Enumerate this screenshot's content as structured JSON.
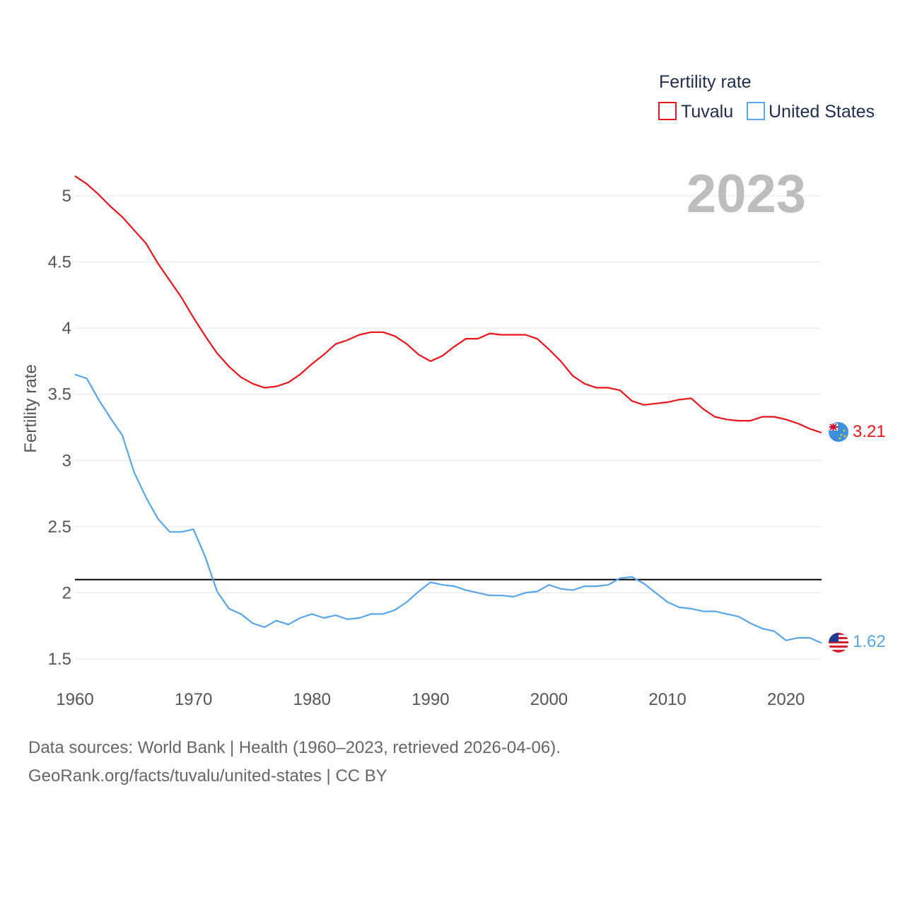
{
  "chart_data": {
    "type": "line",
    "title": "",
    "ylabel": "Fertility rate",
    "xlabel": "",
    "ylim": [
      1.3,
      5.2
    ],
    "xlim": [
      1960,
      2023
    ],
    "y_ticks": [
      1.5,
      2,
      2.5,
      3,
      3.5,
      4,
      4.5,
      5
    ],
    "y_tick_labels": [
      "1.5",
      "2",
      "2.5",
      "3",
      "3.5",
      "4",
      "4.5",
      "5"
    ],
    "x_ticks": [
      1960,
      1970,
      1980,
      1990,
      2000,
      2010,
      2020
    ],
    "x_tick_labels": [
      "1960",
      "1970",
      "1980",
      "1990",
      "2000",
      "2010",
      "2020"
    ],
    "grid": true,
    "legend_title": "Fertility rate",
    "legend_position": "top-right",
    "year_label": "2023",
    "reference_line": {
      "value": 2.1,
      "color": "#000000"
    },
    "x": [
      1960,
      1961,
      1962,
      1963,
      1964,
      1965,
      1966,
      1967,
      1968,
      1969,
      1970,
      1971,
      1972,
      1973,
      1974,
      1975,
      1976,
      1977,
      1978,
      1979,
      1980,
      1981,
      1982,
      1983,
      1984,
      1985,
      1986,
      1987,
      1988,
      1989,
      1990,
      1991,
      1992,
      1993,
      1994,
      1995,
      1996,
      1997,
      1998,
      1999,
      2000,
      2001,
      2002,
      2003,
      2004,
      2005,
      2006,
      2007,
      2008,
      2009,
      2010,
      2011,
      2012,
      2013,
      2014,
      2015,
      2016,
      2017,
      2018,
      2019,
      2020,
      2021,
      2022,
      2023
    ],
    "series": [
      {
        "name": "Tuvalu",
        "color": "#e8141c",
        "end_label": "3.21",
        "values": [
          5.15,
          5.09,
          5.01,
          4.92,
          4.84,
          4.74,
          4.64,
          4.49,
          4.36,
          4.23,
          4.08,
          3.94,
          3.81,
          3.71,
          3.63,
          3.58,
          3.55,
          3.56,
          3.59,
          3.65,
          3.73,
          3.8,
          3.88,
          3.91,
          3.95,
          3.97,
          3.97,
          3.94,
          3.88,
          3.8,
          3.75,
          3.79,
          3.86,
          3.92,
          3.92,
          3.96,
          3.95,
          3.95,
          3.95,
          3.92,
          3.84,
          3.75,
          3.64,
          3.58,
          3.55,
          3.55,
          3.53,
          3.45,
          3.42,
          3.43,
          3.44,
          3.46,
          3.47,
          3.39,
          3.33,
          3.31,
          3.3,
          3.3,
          3.33,
          3.33,
          3.31,
          3.28,
          3.24,
          3.21
        ]
      },
      {
        "name": "United States",
        "color": "#5aa5e8",
        "end_label": "1.62",
        "values": [
          3.65,
          3.62,
          3.46,
          3.32,
          3.19,
          2.91,
          2.72,
          2.56,
          2.46,
          2.46,
          2.48,
          2.27,
          2.01,
          1.88,
          1.84,
          1.77,
          1.74,
          1.79,
          1.76,
          1.81,
          1.84,
          1.81,
          1.83,
          1.8,
          1.81,
          1.84,
          1.84,
          1.87,
          1.93,
          2.01,
          2.08,
          2.06,
          2.05,
          2.02,
          2.0,
          1.98,
          1.98,
          1.97,
          2.0,
          2.01,
          2.06,
          2.03,
          2.02,
          2.05,
          2.05,
          2.06,
          2.11,
          2.12,
          2.07,
          2.0,
          1.93,
          1.89,
          1.88,
          1.86,
          1.86,
          1.84,
          1.82,
          1.77,
          1.73,
          1.71,
          1.64,
          1.66,
          1.66,
          1.62
        ]
      }
    ]
  },
  "footer": {
    "sources": "Data sources: World Bank | Health (1960–2023, retrieved 2026-04-06).",
    "credit": "GeoRank.org/facts/tuvalu/united-states | CC BY"
  }
}
